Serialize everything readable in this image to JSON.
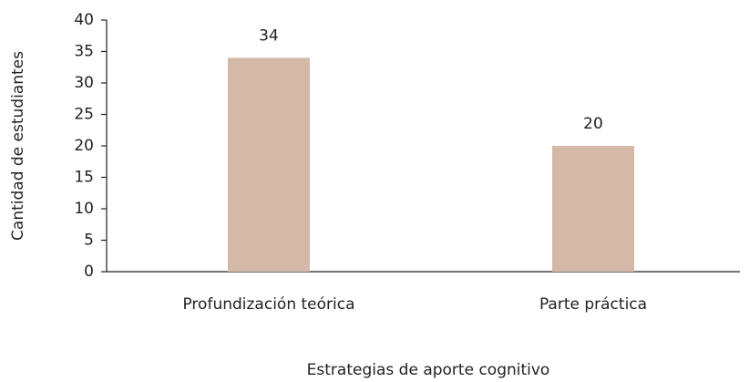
{
  "chart_data": {
    "type": "bar",
    "categories": [
      "Profundización teórica",
      "Parte práctica"
    ],
    "values": [
      34,
      20
    ],
    "color": "#d4b9a9",
    "xlabel": "Estrategias de aporte cognitivo",
    "ylabel": "Cantidad de estudiantes",
    "ylim": [
      0,
      40
    ],
    "yticks": [
      0,
      5,
      10,
      15,
      20,
      25,
      30,
      35,
      40
    ],
    "grid": false
  }
}
